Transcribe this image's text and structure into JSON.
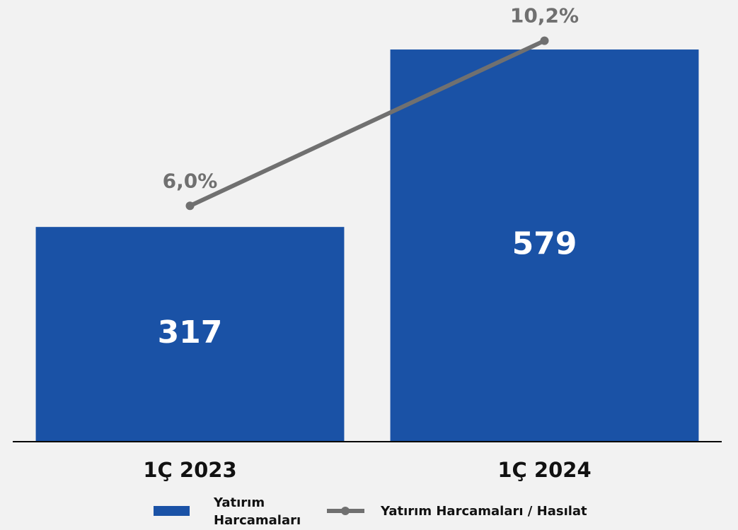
{
  "chart_data": {
    "type": "bar_line",
    "categories": [
      "1Ç 2023",
      "1Ç 2024"
    ],
    "series": [
      {
        "name": "Yatırım Harcamaları",
        "type": "bar",
        "color": "#1a52a6",
        "values": [
          317,
          579
        ]
      },
      {
        "name": "Yatırım Harcamaları / Hasılat",
        "type": "line",
        "axis": "y2",
        "color": "#707070",
        "values": [
          6.0,
          10.2
        ],
        "value_labels": [
          "6,0%",
          "10,2%"
        ]
      }
    ],
    "ylim": [
      0,
      650
    ],
    "y2lim": [
      0,
      11.2
    ],
    "legend": "bottom"
  }
}
